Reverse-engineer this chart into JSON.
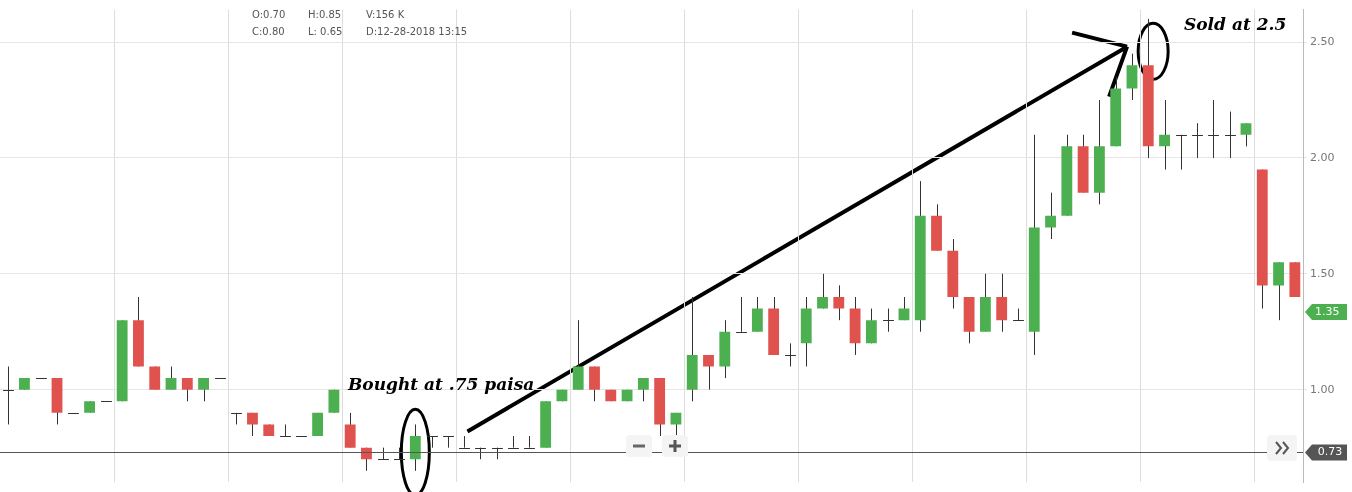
{
  "chart_data": {
    "type": "candlestick",
    "categories": [
      null,
      null,
      null,
      null,
      null,
      null,
      null,
      null,
      null,
      null,
      null,
      null,
      null,
      null,
      null,
      null,
      null,
      null,
      null,
      null,
      null,
      null,
      null,
      null,
      null,
      null,
      null,
      null,
      null,
      null,
      null,
      null,
      null,
      null,
      null,
      null,
      null,
      null,
      null,
      null,
      null,
      null,
      null,
      null,
      null,
      null,
      null,
      null,
      null,
      null,
      null,
      null,
      null,
      null,
      null,
      null,
      null,
      null,
      null,
      null,
      null,
      null,
      null,
      null,
      null,
      null,
      null,
      null,
      null,
      null,
      null,
      null,
      null,
      null,
      null,
      null,
      null,
      null,
      null,
      null
    ],
    "ohlc": [
      [
        1.0,
        1.1,
        0.85,
        1.0
      ],
      [
        1.0,
        1.05,
        1.0,
        1.05
      ],
      [
        1.05,
        1.05,
        1.05,
        1.05
      ],
      [
        1.05,
        1.05,
        0.85,
        0.9
      ],
      [
        0.9,
        0.9,
        0.9,
        0.9
      ],
      [
        0.9,
        0.95,
        0.9,
        0.95
      ],
      [
        0.95,
        0.95,
        0.95,
        0.95
      ],
      [
        0.95,
        1.3,
        0.95,
        1.3
      ],
      [
        1.3,
        1.4,
        1.1,
        1.1
      ],
      [
        1.1,
        1.1,
        1.0,
        1.0
      ],
      [
        1.0,
        1.1,
        1.0,
        1.05
      ],
      [
        1.05,
        1.05,
        0.95,
        1.0
      ],
      [
        1.0,
        1.05,
        0.95,
        1.05
      ],
      [
        1.05,
        1.05,
        1.05,
        1.05
      ],
      [
        0.9,
        0.9,
        0.85,
        0.9
      ],
      [
        0.9,
        0.9,
        0.8,
        0.85
      ],
      [
        0.85,
        0.85,
        0.8,
        0.8
      ],
      [
        0.8,
        0.85,
        0.8,
        0.8
      ],
      [
        0.8,
        0.8,
        0.8,
        0.8
      ],
      [
        0.8,
        0.9,
        0.8,
        0.9
      ],
      [
        0.9,
        1.0,
        0.9,
        1.0
      ],
      [
        0.85,
        0.9,
        0.75,
        0.75
      ],
      [
        0.75,
        0.75,
        0.65,
        0.7
      ],
      [
        0.7,
        0.75,
        0.7,
        0.7
      ],
      [
        0.7,
        0.75,
        0.7,
        0.7
      ],
      [
        0.7,
        0.85,
        0.65,
        0.8
      ],
      [
        0.8,
        0.8,
        0.75,
        0.8
      ],
      [
        0.8,
        0.8,
        0.75,
        0.8
      ],
      [
        0.75,
        0.8,
        0.75,
        0.75
      ],
      [
        0.75,
        0.75,
        0.7,
        0.75
      ],
      [
        0.75,
        0.75,
        0.7,
        0.75
      ],
      [
        0.75,
        0.8,
        0.75,
        0.75
      ],
      [
        0.75,
        0.8,
        0.75,
        0.75
      ],
      [
        0.75,
        0.95,
        0.75,
        0.95
      ],
      [
        0.95,
        1.0,
        0.95,
        1.0
      ],
      [
        1.0,
        1.3,
        1.0,
        1.1
      ],
      [
        1.1,
        1.1,
        0.95,
        1.0
      ],
      [
        1.0,
        1.0,
        0.95,
        0.95
      ],
      [
        0.95,
        1.0,
        0.95,
        1.0
      ],
      [
        1.0,
        1.05,
        0.95,
        1.05
      ],
      [
        1.05,
        1.05,
        0.8,
        0.85
      ],
      [
        0.85,
        0.9,
        0.8,
        0.9
      ],
      [
        1.0,
        1.4,
        0.95,
        1.15
      ],
      [
        1.15,
        1.15,
        1.0,
        1.1
      ],
      [
        1.1,
        1.3,
        1.05,
        1.25
      ],
      [
        1.25,
        1.4,
        1.25,
        1.25
      ],
      [
        1.25,
        1.4,
        1.25,
        1.35
      ],
      [
        1.35,
        1.4,
        1.15,
        1.15
      ],
      [
        1.15,
        1.2,
        1.1,
        1.15
      ],
      [
        1.2,
        1.4,
        1.1,
        1.35
      ],
      [
        1.35,
        1.5,
        1.35,
        1.4
      ],
      [
        1.4,
        1.45,
        1.3,
        1.35
      ],
      [
        1.35,
        1.4,
        1.15,
        1.2
      ],
      [
        1.2,
        1.35,
        1.2,
        1.3
      ],
      [
        1.3,
        1.35,
        1.25,
        1.3
      ],
      [
        1.3,
        1.4,
        1.3,
        1.35
      ],
      [
        1.3,
        1.9,
        1.25,
        1.75
      ],
      [
        1.75,
        1.8,
        1.6,
        1.6
      ],
      [
        1.6,
        1.65,
        1.35,
        1.4
      ],
      [
        1.4,
        1.4,
        1.2,
        1.25
      ],
      [
        1.25,
        1.5,
        1.25,
        1.4
      ],
      [
        1.4,
        1.5,
        1.25,
        1.3
      ],
      [
        1.3,
        1.35,
        1.3,
        1.3
      ],
      [
        1.25,
        2.1,
        1.15,
        1.7
      ],
      [
        1.7,
        1.85,
        1.65,
        1.75
      ],
      [
        1.75,
        2.1,
        1.75,
        2.05
      ],
      [
        2.05,
        2.1,
        1.85,
        1.85
      ],
      [
        1.85,
        2.25,
        1.8,
        2.05
      ],
      [
        2.05,
        2.35,
        2.05,
        2.3
      ],
      [
        2.3,
        2.45,
        2.25,
        2.4
      ],
      [
        2.4,
        2.6,
        2.0,
        2.05
      ],
      [
        2.05,
        2.25,
        1.95,
        2.1
      ],
      [
        2.1,
        2.1,
        1.95,
        2.1
      ],
      [
        2.1,
        2.15,
        2.0,
        2.1
      ],
      [
        2.1,
        2.25,
        2.0,
        2.1
      ],
      [
        2.1,
        2.2,
        2.0,
        2.1
      ],
      [
        2.1,
        2.15,
        2.05,
        2.15
      ],
      [
        1.95,
        1.95,
        1.35,
        1.45
      ],
      [
        1.45,
        1.55,
        1.3,
        1.55
      ],
      [
        1.55,
        1.55,
        1.4,
        1.4
      ]
    ],
    "colors": [
      "#333333",
      "#4caf50",
      "#333333",
      "#e0524e",
      "#333333",
      "#4caf50",
      "#333333",
      "#4caf50",
      "#e0524e",
      "#e0524e",
      "#4caf50",
      "#e0524e",
      "#4caf50",
      "#333333",
      "#333333",
      "#e0524e",
      "#e0524e",
      "#333333",
      "#333333",
      "#4caf50",
      "#4caf50",
      "#e0524e",
      "#e0524e",
      "#333333",
      "#333333",
      "#4caf50",
      "#333333",
      "#333333",
      "#333333",
      "#333333",
      "#333333",
      "#333333",
      "#333333",
      "#4caf50",
      "#4caf50",
      "#4caf50",
      "#e0524e",
      "#e0524e",
      "#4caf50",
      "#4caf50",
      "#e0524e",
      "#4caf50",
      "#4caf50",
      "#e0524e",
      "#4caf50",
      "#333333",
      "#4caf50",
      "#e0524e",
      "#333333",
      "#4caf50",
      "#4caf50",
      "#e0524e",
      "#e0524e",
      "#4caf50",
      "#333333",
      "#4caf50",
      "#4caf50",
      "#e0524e",
      "#e0524e",
      "#e0524e",
      "#4caf50",
      "#e0524e",
      "#333333",
      "#4caf50",
      "#4caf50",
      "#4caf50",
      "#e0524e",
      "#4caf50",
      "#4caf50",
      "#4caf50",
      "#e0524e",
      "#4caf50",
      "#333333",
      "#333333",
      "#333333",
      "#333333",
      "#4caf50",
      "#e0524e",
      "#4caf50",
      "#e0524e"
    ],
    "ylim": [
      0.6,
      2.64
    ],
    "yticks": [
      {
        "value": 1,
        "label": "1.00"
      },
      {
        "value": 1.5,
        "label": "1.50"
      },
      {
        "value": 2,
        "label": "2.00"
      },
      {
        "value": 2.5,
        "label": "2.50"
      }
    ],
    "grid": true,
    "ref_lines": [
      {
        "axis": "y",
        "value": 0.73,
        "label": "0.73",
        "color": "#555555",
        "line_style": "solid"
      }
    ],
    "annotations": [
      "O:0.70",
      "H:0.85",
      "V:156 K",
      "C:0.80",
      "L: 0.65",
      "D:12-28-2018 13:15",
      "Bought at .75 paisa",
      "Sold at 2.5",
      "1.35"
    ]
  }
}
